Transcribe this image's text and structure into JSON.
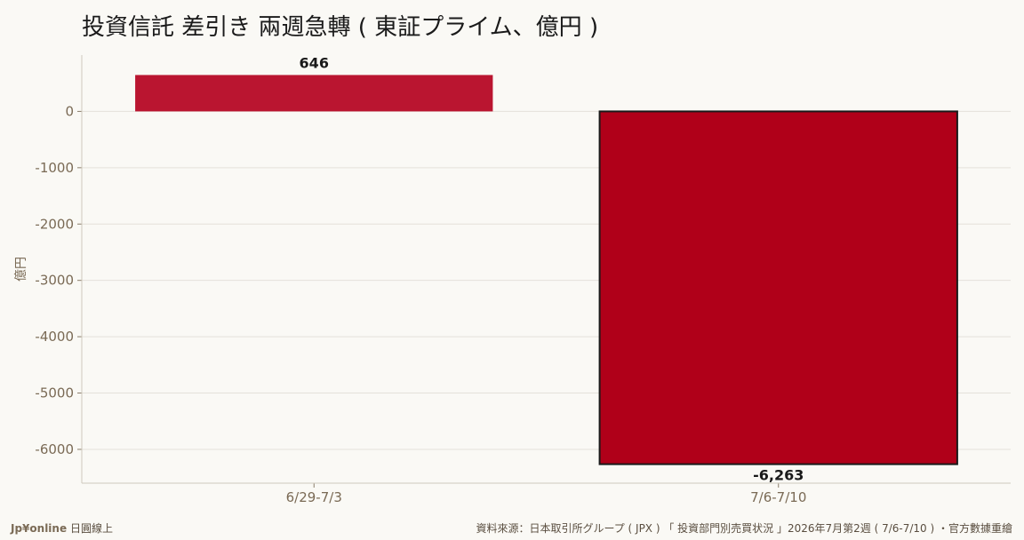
{
  "chart_data": {
    "type": "bar",
    "title": "投資信託 差引き 兩週急轉 ( 東証プライム、億円 )",
    "ylabel": "億円",
    "categories": [
      "6/29-7/3",
      "7/6-7/10"
    ],
    "values": [
      646,
      -6263
    ],
    "value_labels": [
      "646",
      "-6,263"
    ],
    "ylim": [
      -6600,
      1000
    ],
    "yticks": [
      0,
      -1000,
      -2000,
      -3000,
      -4000,
      -5000,
      -6000
    ],
    "grid": true,
    "bar_colors": [
      "#ba1530",
      "#b00019"
    ],
    "highlight_index": 1
  },
  "footer": {
    "brand": "Jp¥online",
    "brand_suffix": "日圓線上",
    "source": "資料來源：日本取引所グループ ( JPX ) 「 投資部門別売買状況 」2026年7月第2週 ( 7/6-7/10 ) ・官方數據重繪"
  }
}
